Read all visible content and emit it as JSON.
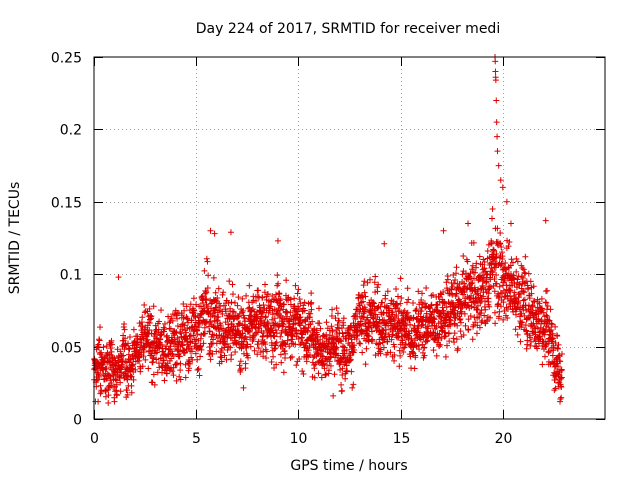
{
  "chart_data": {
    "type": "scatter",
    "title": "Day 224 of 2017, SRMTID for receiver medi",
    "xlabel": "GPS time / hours",
    "ylabel": "SRMTID / TECUs",
    "xlim": [
      0,
      25
    ],
    "ylim": [
      0,
      0.25
    ],
    "xticks": [
      0,
      5,
      10,
      15,
      20
    ],
    "yticks": [
      0,
      0.05,
      0.1,
      0.15,
      0.2,
      0.25
    ],
    "grid": true,
    "marker": "+",
    "marker_color": "#dd0000",
    "series": [
      {
        "name": "SRMTID",
        "sample_interval_hours": 0.008,
        "x_range": [
          0,
          22.9
        ],
        "trend": [
          {
            "x": 0.0,
            "y": 0.038,
            "spread": 0.018
          },
          {
            "x": 0.5,
            "y": 0.04,
            "spread": 0.02
          },
          {
            "x": 1.0,
            "y": 0.03,
            "spread": 0.015
          },
          {
            "x": 1.5,
            "y": 0.045,
            "spread": 0.018
          },
          {
            "x": 2.5,
            "y": 0.052,
            "spread": 0.02
          },
          {
            "x": 3.5,
            "y": 0.048,
            "spread": 0.02
          },
          {
            "x": 4.5,
            "y": 0.055,
            "spread": 0.022
          },
          {
            "x": 5.5,
            "y": 0.072,
            "spread": 0.025
          },
          {
            "x": 6.5,
            "y": 0.065,
            "spread": 0.022
          },
          {
            "x": 7.5,
            "y": 0.06,
            "spread": 0.022
          },
          {
            "x": 8.5,
            "y": 0.068,
            "spread": 0.023
          },
          {
            "x": 9.5,
            "y": 0.07,
            "spread": 0.024
          },
          {
            "x": 10.5,
            "y": 0.06,
            "spread": 0.022
          },
          {
            "x": 11.5,
            "y": 0.05,
            "spread": 0.02
          },
          {
            "x": 12.5,
            "y": 0.055,
            "spread": 0.02
          },
          {
            "x": 13.5,
            "y": 0.07,
            "spread": 0.022
          },
          {
            "x": 14.5,
            "y": 0.068,
            "spread": 0.022
          },
          {
            "x": 15.5,
            "y": 0.062,
            "spread": 0.02
          },
          {
            "x": 16.5,
            "y": 0.068,
            "spread": 0.02
          },
          {
            "x": 17.5,
            "y": 0.078,
            "spread": 0.022
          },
          {
            "x": 18.5,
            "y": 0.085,
            "spread": 0.022
          },
          {
            "x": 19.0,
            "y": 0.088,
            "spread": 0.022
          },
          {
            "x": 19.7,
            "y": 0.11,
            "spread": 0.03
          },
          {
            "x": 20.5,
            "y": 0.09,
            "spread": 0.025
          },
          {
            "x": 21.5,
            "y": 0.075,
            "spread": 0.022
          },
          {
            "x": 22.2,
            "y": 0.06,
            "spread": 0.02
          },
          {
            "x": 22.9,
            "y": 0.035,
            "spread": 0.015
          }
        ],
        "peaks": [
          {
            "x": 19.62,
            "y": 0.25
          },
          {
            "x": 19.63,
            "y": 0.247
          },
          {
            "x": 19.64,
            "y": 0.24
          },
          {
            "x": 19.65,
            "y": 0.236
          },
          {
            "x": 19.66,
            "y": 0.234
          },
          {
            "x": 19.68,
            "y": 0.22
          },
          {
            "x": 19.7,
            "y": 0.205
          },
          {
            "x": 19.72,
            "y": 0.195
          },
          {
            "x": 19.74,
            "y": 0.185
          },
          {
            "x": 19.8,
            "y": 0.175
          },
          {
            "x": 19.9,
            "y": 0.165
          },
          {
            "x": 20.0,
            "y": 0.16
          },
          {
            "x": 19.5,
            "y": 0.145
          },
          {
            "x": 20.2,
            "y": 0.15
          },
          {
            "x": 20.4,
            "y": 0.135
          },
          {
            "x": 5.7,
            "y": 0.13
          },
          {
            "x": 5.9,
            "y": 0.128
          },
          {
            "x": 6.7,
            "y": 0.129
          },
          {
            "x": 9.0,
            "y": 0.123
          },
          {
            "x": 18.3,
            "y": 0.135
          },
          {
            "x": 22.1,
            "y": 0.137
          },
          {
            "x": 17.1,
            "y": 0.13
          },
          {
            "x": 0.2,
            "y": 0.012
          },
          {
            "x": 1.0,
            "y": 0.012
          },
          {
            "x": 22.8,
            "y": 0.012
          },
          {
            "x": 11.7,
            "y": 0.016
          },
          {
            "x": 1.2,
            "y": 0.098
          },
          {
            "x": 14.2,
            "y": 0.121
          }
        ]
      }
    ]
  }
}
